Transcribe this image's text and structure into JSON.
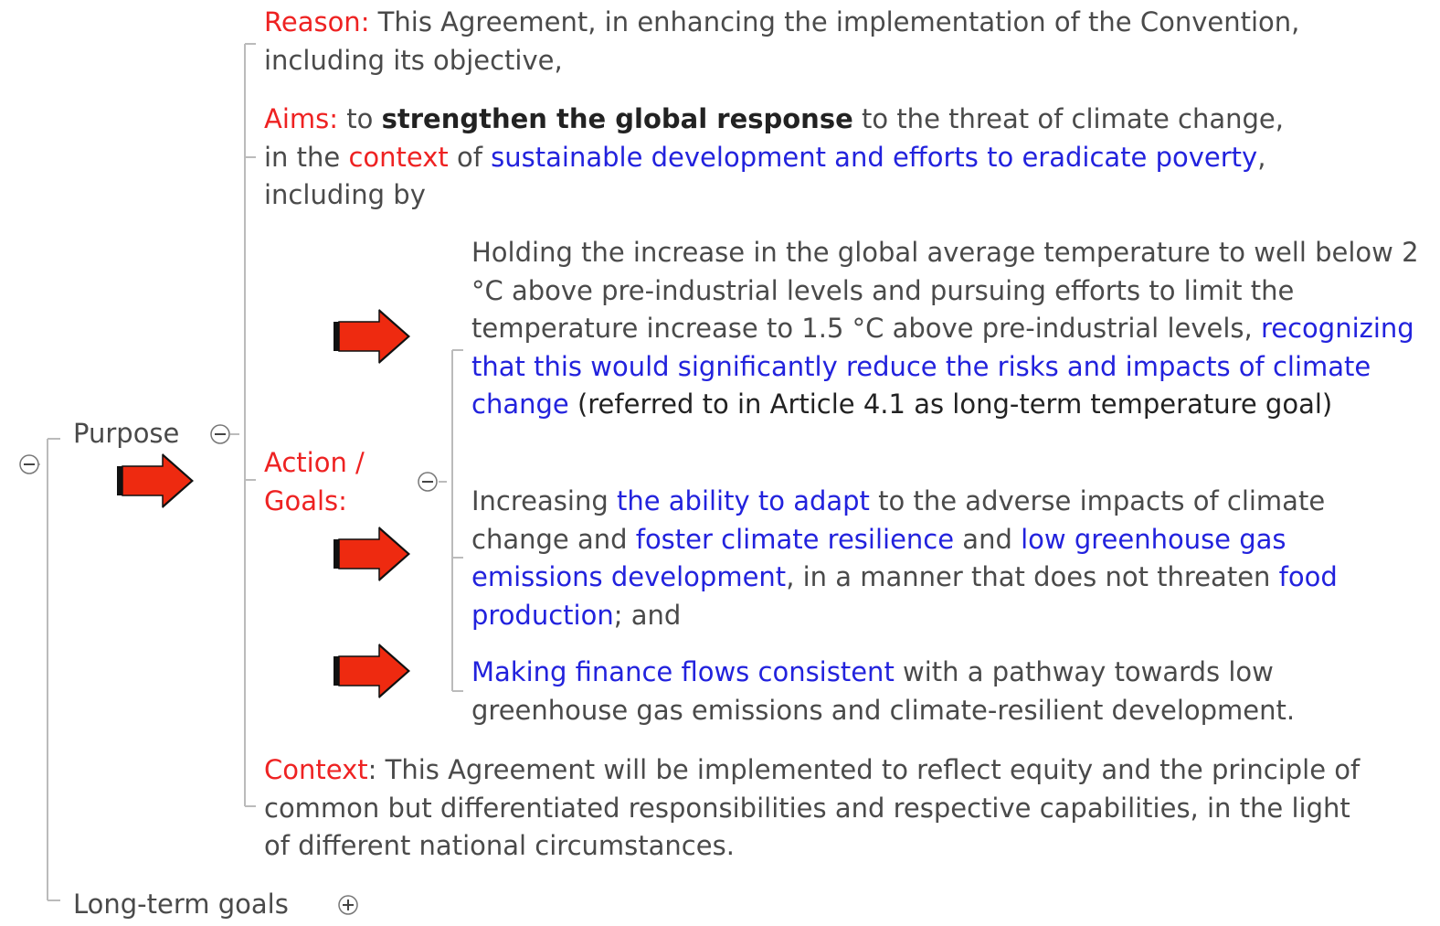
{
  "purpose": {
    "label": "Purpose"
  },
  "reason": {
    "segments": [
      {
        "text": "Reason:",
        "color": "#ee2222"
      },
      {
        "text": " This Agreement, in enhancing the implementation of the Convention, including its objective,"
      }
    ]
  },
  "aims": {
    "segments": [
      {
        "text": "Aims:",
        "color": "#ee2222"
      },
      {
        "text": " to "
      },
      {
        "text": "strengthen the global response",
        "color": "#222222",
        "bold": true
      },
      {
        "text": " to the threat of climate change, in the "
      },
      {
        "text": "context",
        "color": "#ee2222"
      },
      {
        "text": " of "
      },
      {
        "text": "sustainable development and efforts to eradicate poverty",
        "color": "#2222dd"
      },
      {
        "text": ", including by"
      }
    ]
  },
  "action_goals": {
    "label": "Action / Goals:"
  },
  "goals": [
    {
      "segments": [
        {
          "text": "Holding the increase in the global average temperature to well below 2 °C above pre-industrial levels and pursuing efforts to limit the temperature increase to 1.5 °C above pre-industrial levels, "
        },
        {
          "text": "recognizing that this would significantly reduce the risks and impacts of climate change",
          "color": "#2222dd"
        },
        {
          "text": " (referred to in Article 4.1 as long-term temperature goal)",
          "color": "#222222"
        }
      ]
    },
    {
      "segments": [
        {
          "text": "Increasing "
        },
        {
          "text": "the ability to adapt",
          "color": "#2222dd"
        },
        {
          "text": " to the adverse impacts of climate change and "
        },
        {
          "text": "foster climate resilience",
          "color": "#2222dd"
        },
        {
          "text": " and "
        },
        {
          "text": "low greenhouse gas emissions development",
          "color": "#2222dd"
        },
        {
          "text": ", in a manner that does not threaten "
        },
        {
          "text": "food production",
          "color": "#2222dd"
        },
        {
          "text": "; and"
        }
      ]
    },
    {
      "segments": [
        {
          "text": "Making finance flows consistent",
          "color": "#2222dd"
        },
        {
          "text": " with a pathway towards low greenhouse gas emissions and climate-resilient development."
        }
      ]
    }
  ],
  "context": {
    "segments": [
      {
        "text": "Context",
        "color": "#ee2222"
      },
      {
        "text": ": This Agreement will be implemented to reflect equity and the principle of common but differentiated responsibilities and respective capabilities, in the light of different national circumstances."
      }
    ]
  },
  "long_term_goals": {
    "label": "Long-term goals"
  }
}
